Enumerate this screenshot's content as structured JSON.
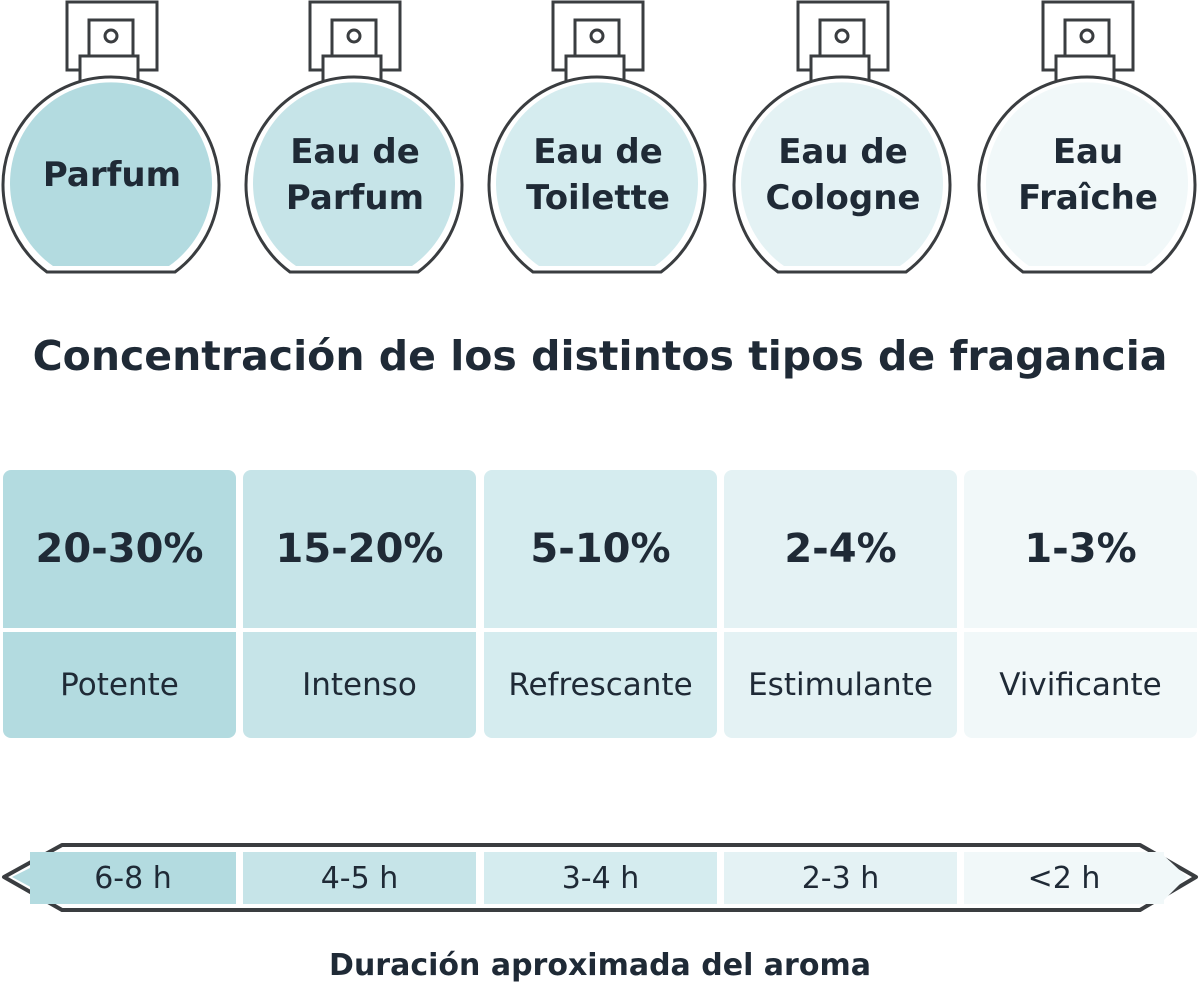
{
  "fragrances": [
    {
      "name": "Parfum",
      "concentration": "20-30%",
      "character": "Potente",
      "duration": "6-8 h",
      "color": "#b3dbe0"
    },
    {
      "name": "Eau de\nParfum",
      "concentration": "15-20%",
      "character": "Intenso",
      "duration": "4-5 h",
      "color": "#c6e4e8"
    },
    {
      "name": "Eau de\nToilette",
      "concentration": "5-10%",
      "character": "Refrescante",
      "duration": "3-4 h",
      "color": "#d5ecef"
    },
    {
      "name": "Eau de\nCologne",
      "concentration": "2-4%",
      "character": "Estimulante",
      "duration": "2-3 h",
      "color": "#e4f2f4"
    },
    {
      "name": "Eau\nFraîche",
      "concentration": "1-3%",
      "character": "Vivificante",
      "duration": "<2 h",
      "color": "#f1f8f9"
    }
  ],
  "title": "Concentración de los distintos tipos de fragancia",
  "duration_label": "Duración aproximada del aroma",
  "outline_color": "#3a3d40"
}
